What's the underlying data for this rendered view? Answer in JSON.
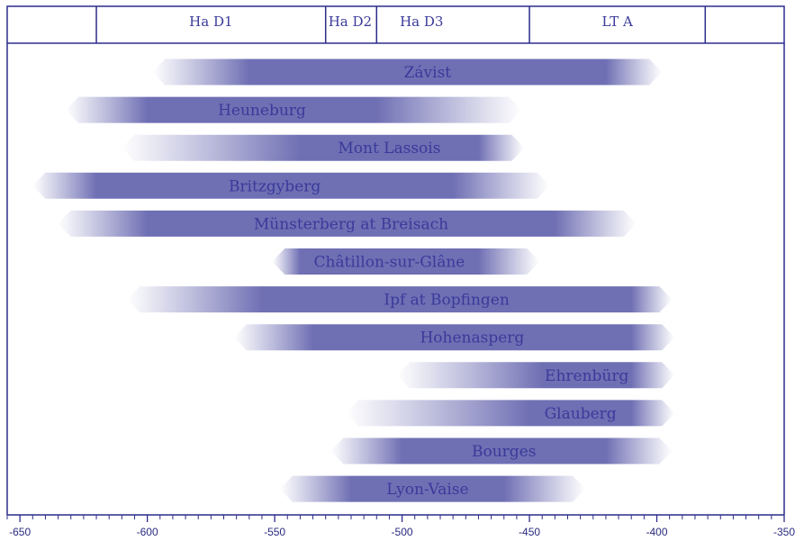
{
  "colors": {
    "frame": "#2c2c8c",
    "arrow_dark": "#6f6fb4",
    "arrow_light": "#ffffff",
    "text": "#3a3a9a"
  },
  "chart_data": {
    "type": "range-arrows",
    "title": "",
    "xlabel": "",
    "ylabel": "",
    "xlim": [
      -655,
      -350
    ],
    "x_ticks": [
      -650,
      -600,
      -550,
      -500,
      -450,
      -400,
      -350
    ],
    "x_tick_labels": [
      "-650",
      "-600",
      "-550",
      "-500",
      "-450",
      "-400",
      "-350"
    ],
    "minor_tick_step": 5,
    "phases": [
      {
        "name": "",
        "start": -655,
        "end": -620
      },
      {
        "name": "Ha D1",
        "start": -620,
        "end": -530
      },
      {
        "name": "Ha D2",
        "start": -530,
        "end": -510
      },
      {
        "name": "Ha D3",
        "start": -510,
        "end": -450
      },
      {
        "name": "LT A",
        "start": -450,
        "end": -381
      },
      {
        "name": "",
        "start": -381,
        "end": -350
      }
    ],
    "ranges": [
      {
        "site": "Závist",
        "start": -598,
        "end": -398,
        "peak_from": -560,
        "peak_to": -420
      },
      {
        "site": "Heuneburg",
        "start": -632,
        "end": -453,
        "peak_from": -600,
        "peak_to": -510
      },
      {
        "site": "Mont Lassois",
        "start": -610,
        "end": -452,
        "peak_from": -540,
        "peak_to": -470
      },
      {
        "site": "Britzgyberg",
        "start": -645,
        "end": -442,
        "peak_from": -620,
        "peak_to": -480
      },
      {
        "site": "Münsterberg at Breisach",
        "start": -635,
        "end": -408,
        "peak_from": -600,
        "peak_to": -440
      },
      {
        "site": "Châtillon-sur-Glâne",
        "start": -551,
        "end": -446,
        "peak_from": -540,
        "peak_to": -470
      },
      {
        "site": "Ipf at Bopfingen",
        "start": -608,
        "end": -394,
        "peak_from": -555,
        "peak_to": -410
      },
      {
        "site": "Hohenasperg",
        "start": -566,
        "end": -393,
        "peak_from": -535,
        "peak_to": -410
      },
      {
        "site": "Ehrenbürg",
        "start": -502,
        "end": -393,
        "peak_from": -445,
        "peak_to": -410
      },
      {
        "site": "Glauberg",
        "start": -522,
        "end": -393,
        "peak_from": -450,
        "peak_to": -410
      },
      {
        "site": "Bourges",
        "start": -528,
        "end": -394,
        "peak_from": -500,
        "peak_to": -420
      },
      {
        "site": "Lyon-Vaise",
        "start": -548,
        "end": -428,
        "peak_from": -520,
        "peak_to": -460
      }
    ]
  }
}
